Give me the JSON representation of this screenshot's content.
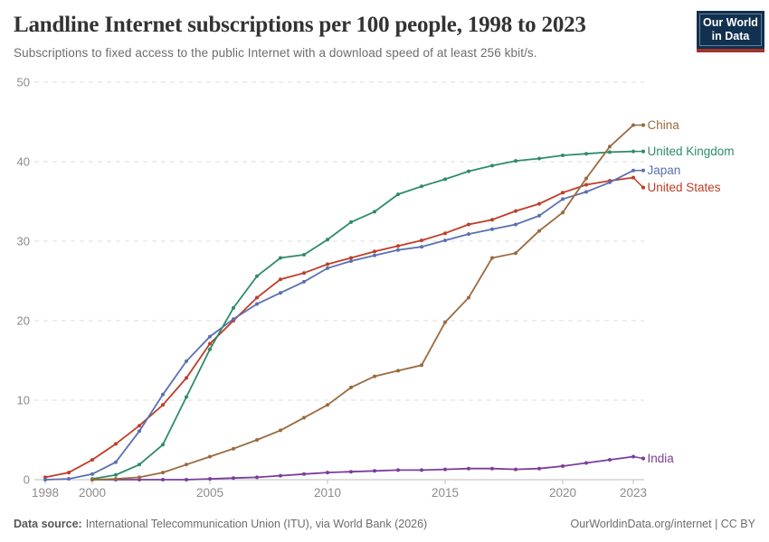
{
  "header": {
    "title": "Landline Internet subscriptions per 100 people, 1998 to 2023",
    "subtitle": "Subscriptions to fixed access to the public Internet with a download speed of at least 256 kbit/s.",
    "logo": {
      "line1": "Our World",
      "line2": "in Data"
    }
  },
  "footer": {
    "source_label": "Data source:",
    "source_text": "International Telecommunication Union (ITU), via World Bank (2026)",
    "credit": "OurWorldinData.org/internet | CC BY"
  },
  "colors": {
    "china": "#9a6a3e",
    "united_kingdom": "#2e8b6c",
    "japan": "#5a70b0",
    "united_states": "#bf3d26",
    "india": "#7a3d99",
    "gridline": "#dcdcdc",
    "axis": "#bdbdbd",
    "tick_label": "#8c8c8c"
  },
  "chart_data": {
    "type": "line",
    "title": "Landline Internet subscriptions per 100 people, 1998 to 2023",
    "xlabel": "",
    "ylabel": "",
    "xlim": [
      1998,
      2023
    ],
    "ylim": [
      0,
      50
    ],
    "xticks": [
      1998,
      2000,
      2005,
      2010,
      2015,
      2020,
      2023
    ],
    "yticks": [
      0,
      10,
      20,
      30,
      40,
      50
    ],
    "grid": "horizontal-dashed",
    "legend_position": "right-of-line-ends",
    "x": [
      1998,
      1999,
      2000,
      2001,
      2002,
      2003,
      2004,
      2005,
      2006,
      2007,
      2008,
      2009,
      2010,
      2011,
      2012,
      2013,
      2014,
      2015,
      2016,
      2017,
      2018,
      2019,
      2020,
      2021,
      2022,
      2023
    ],
    "series": [
      {
        "name": "China",
        "color": "#9a6a3e",
        "label_dy": 0,
        "values": [
          null,
          null,
          0,
          0.1,
          0.3,
          0.9,
          1.9,
          2.9,
          3.9,
          5.0,
          6.2,
          7.8,
          9.4,
          11.6,
          13.0,
          13.7,
          14.4,
          19.8,
          22.9,
          27.9,
          28.5,
          31.3,
          33.6,
          37.9,
          41.9,
          44.6
        ]
      },
      {
        "name": "United Kingdom",
        "color": "#2e8b6c",
        "label_dy": 0,
        "values": [
          null,
          null,
          0.1,
          0.6,
          1.9,
          4.4,
          10.4,
          16.4,
          21.6,
          25.6,
          27.9,
          28.3,
          30.2,
          32.4,
          33.7,
          35.9,
          36.9,
          37.8,
          38.8,
          39.5,
          40.1,
          40.4,
          40.8,
          41.0,
          41.2,
          41.3
        ]
      },
      {
        "name": "Japan",
        "color": "#5a70b0",
        "label_dy": 0,
        "values": [
          0,
          0.1,
          0.7,
          2.2,
          6.1,
          10.7,
          14.9,
          18.0,
          20.2,
          22.1,
          23.5,
          24.9,
          26.6,
          27.5,
          28.2,
          28.9,
          29.3,
          30.1,
          30.9,
          31.5,
          32.1,
          33.2,
          35.3,
          36.2,
          37.4,
          38.9
        ]
      },
      {
        "name": "United States",
        "color": "#bf3d26",
        "label_dy": 11,
        "values": [
          0.3,
          0.9,
          2.5,
          4.5,
          6.8,
          9.4,
          12.8,
          17.1,
          20.0,
          22.9,
          25.2,
          26.0,
          27.1,
          27.9,
          28.7,
          29.4,
          30.1,
          31.0,
          32.1,
          32.7,
          33.8,
          34.7,
          36.1,
          37.1,
          37.6,
          38.0
        ]
      },
      {
        "name": "India",
        "color": "#7a3d99",
        "label_dy": 2,
        "values": [
          null,
          null,
          0,
          0,
          0,
          0,
          0,
          0.1,
          0.2,
          0.3,
          0.5,
          0.7,
          0.9,
          1.0,
          1.1,
          1.2,
          1.2,
          1.3,
          1.4,
          1.4,
          1.3,
          1.4,
          1.7,
          2.1,
          2.5,
          2.9
        ]
      }
    ]
  }
}
